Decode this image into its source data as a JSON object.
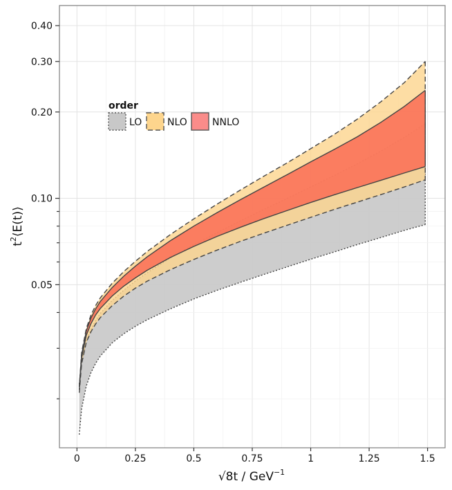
{
  "chart_data": {
    "type": "area",
    "title": "",
    "xlabel": "√8t / GeV⁻¹",
    "xlabel_parts": {
      "sqrt": "8t",
      "unit": " / GeV",
      "exp": "−1"
    },
    "ylabel_parts": {
      "base": "t",
      "exp": "2",
      "rest": "⟨E(t)⟩"
    },
    "xlim": [
      -0.075,
      1.575
    ],
    "ylim": [
      0.0135,
      0.47
    ],
    "yscale": "log",
    "grid": true,
    "x_ticks": [
      0,
      0.25,
      0.5,
      0.75,
      1,
      1.25,
      1.5
    ],
    "x_tick_labels": [
      "0",
      "0.25",
      "0.5",
      "0.75",
      "1",
      "1.25",
      "1.5"
    ],
    "y_ticks": [
      0.05,
      0.1,
      0.2,
      0.3,
      0.4
    ],
    "y_tick_labels": [
      "0.05",
      "0.10",
      "0.20",
      "0.30",
      "0.40"
    ],
    "y_minor_ticks": [
      0.02,
      0.03,
      0.04,
      0.06,
      0.07,
      0.08,
      0.09
    ],
    "legend": {
      "title": "order",
      "position": "top-left",
      "entries": [
        {
          "label": "LO",
          "fill": "#c8c8c8",
          "dash": "dotted"
        },
        {
          "label": "NLO",
          "fill": "#fdd58d",
          "dash": "dashed"
        },
        {
          "label": "NNLO",
          "fill": "#fa8c8a",
          "dash": "solid"
        }
      ]
    },
    "x": [
      0.01,
      0.02,
      0.04,
      0.06,
      0.08,
      0.1,
      0.15,
      0.2,
      0.25,
      0.3,
      0.4,
      0.5,
      0.6,
      0.7,
      0.8,
      0.9,
      1.0,
      1.1,
      1.2,
      1.3,
      1.4,
      1.49
    ],
    "series": [
      {
        "name": "LO",
        "fill": "#c8c8c8",
        "opacity": 0.9,
        "dash": "dotted",
        "upper": [
          0.0225,
          0.027,
          0.0318,
          0.035,
          0.0375,
          0.0397,
          0.044,
          0.0478,
          0.0515,
          0.055,
          0.062,
          0.069,
          0.076,
          0.0835,
          0.0915,
          0.1,
          0.1095,
          0.12,
          0.132,
          0.146,
          0.163,
          0.182
        ],
        "lower": [
          0.015,
          0.0185,
          0.0222,
          0.0247,
          0.0266,
          0.0282,
          0.0313,
          0.0337,
          0.0358,
          0.0377,
          0.0412,
          0.0446,
          0.0478,
          0.051,
          0.0543,
          0.0577,
          0.0613,
          0.065,
          0.069,
          0.073,
          0.0773,
          0.081
        ]
      },
      {
        "name": "NLO",
        "fill": "#fdd58d",
        "opacity": 0.8,
        "dash": "dashed",
        "upper": [
          0.022,
          0.029,
          0.0352,
          0.0392,
          0.0423,
          0.045,
          0.0505,
          0.0555,
          0.0603,
          0.0652,
          0.0748,
          0.0848,
          0.0955,
          0.107,
          0.1195,
          0.133,
          0.149,
          0.167,
          0.189,
          0.217,
          0.253,
          0.3
        ],
        "lower": [
          0.021,
          0.0265,
          0.0315,
          0.0343,
          0.0365,
          0.0384,
          0.0422,
          0.0456,
          0.0486,
          0.0514,
          0.0564,
          0.0612,
          0.066,
          0.0708,
          0.0756,
          0.0806,
          0.0858,
          0.0914,
          0.097,
          0.103,
          0.1095,
          0.116
        ]
      },
      {
        "name": "NNLO",
        "fill": "#fa6c55",
        "opacity": 0.85,
        "dash": "solid",
        "upper": [
          0.022,
          0.0285,
          0.0345,
          0.0383,
          0.0412,
          0.0437,
          0.0488,
          0.0535,
          0.058,
          0.0625,
          0.0712,
          0.08,
          0.0892,
          0.099,
          0.1095,
          0.121,
          0.134,
          0.148,
          0.164,
          0.184,
          0.209,
          0.238
        ],
        "lower": [
          0.0215,
          0.0278,
          0.0333,
          0.0366,
          0.0392,
          0.0413,
          0.0456,
          0.0494,
          0.0528,
          0.0561,
          0.0622,
          0.068,
          0.0737,
          0.0793,
          0.085,
          0.0907,
          0.0967,
          0.1028,
          0.109,
          0.1155,
          0.1225,
          0.129
        ]
      }
    ]
  }
}
